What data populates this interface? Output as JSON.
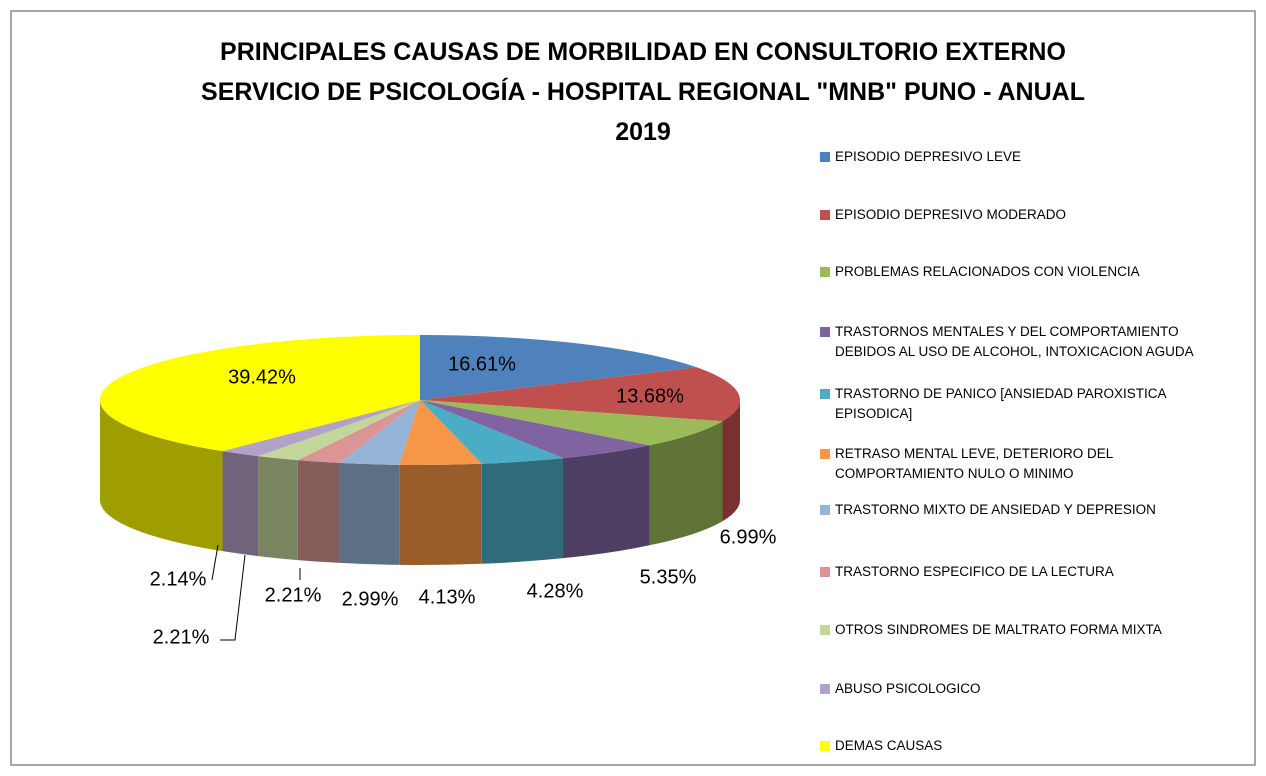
{
  "chart_data": {
    "type": "pie3d",
    "title": [
      "PRINCIPALES CAUSAS DE MORBILIDAD EN CONSULTORIO EXTERNO",
      "SERVICIO DE PSICOLOGÍA - HOSPITAL REGIONAL \"MNB\" PUNO - ANUAL",
      "2019"
    ],
    "categories": [
      "EPISODIO DEPRESIVO LEVE",
      "EPISODIO DEPRESIVO MODERADO",
      "PROBLEMAS RELACIONADOS CON VIOLENCIA",
      "TRASTORNOS MENTALES Y DEL COMPORTAMIENTO DEBIDOS AL USO DE ALCOHOL, INTOXICACION AGUDA",
      "TRASTORNO DE PANICO [ANSIEDAD PAROXISTICA EPISODICA]",
      "RETRASO MENTAL LEVE, DETERIORO DEL COMPORTAMIENTO NULO O MINIMO",
      "TRASTORNO MIXTO DE ANSIEDAD Y DEPRESION",
      "TRASTORNO ESPECIFICO DE LA LECTURA",
      "OTROS SINDROMES DE MALTRATO FORMA MIXTA",
      "ABUSO PSICOLOGICO",
      "DEMAS CAUSAS"
    ],
    "values": [
      16.61,
      13.68,
      6.99,
      5.35,
      4.28,
      4.13,
      2.99,
      2.21,
      2.21,
      2.14,
      39.42
    ],
    "value_labels": [
      "16.61%",
      "13.68%",
      "6.99%",
      "5.35%",
      "4.28%",
      "4.13%",
      "2.99%",
      "2.21%",
      "2.21%",
      "2.14%",
      "39.42%"
    ],
    "colors": [
      "#4f81bd",
      "#c0504d",
      "#9bbb59",
      "#8064a2",
      "#4bacc6",
      "#f79646",
      "#95b3d7",
      "#d99694",
      "#c3d69b",
      "#b3a2c7",
      "#ffff00"
    ],
    "legend": "right"
  }
}
